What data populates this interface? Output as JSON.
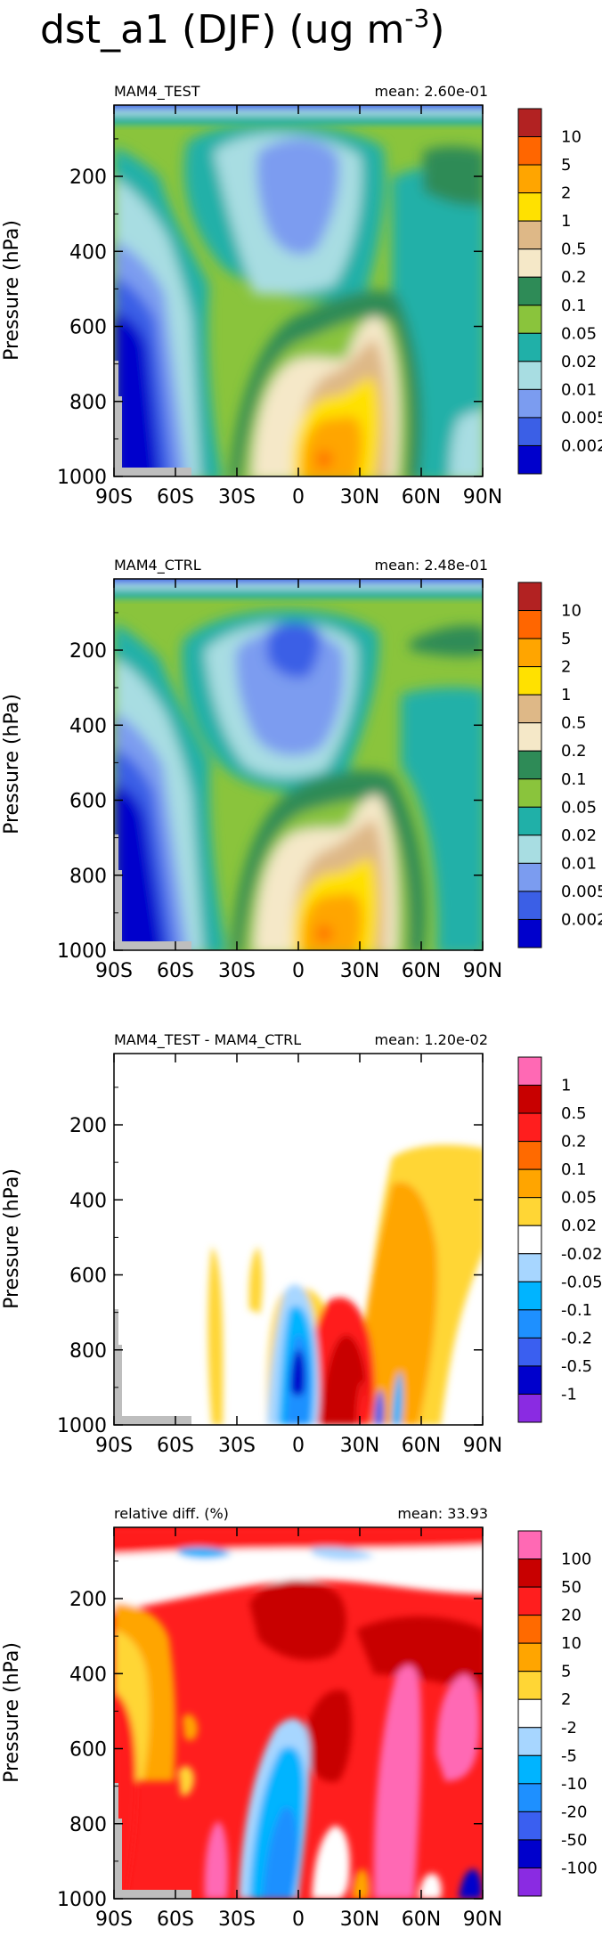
{
  "figure": {
    "title": "dst_a1 (DJF) (ug m",
    "title_sup": "-3",
    "title_end": ")"
  },
  "chart_data": [
    {
      "type": "heatmap",
      "panel_title": "MAM4_TEST",
      "mean_label": "mean: 2.60e-01",
      "ylabel": "Pressure (hPa)",
      "xlabel": "",
      "x_ticks": [
        "90S",
        "60S",
        "30S",
        "0",
        "30N",
        "60N",
        "90N"
      ],
      "y_ticks": [
        "200",
        "400",
        "600",
        "800",
        "1000"
      ],
      "xlim": [
        -90,
        90
      ],
      "ylim": [
        1000,
        10
      ],
      "levels": [
        "0.002",
        "0.005",
        "0.01",
        "0.02",
        "0.05",
        "0.1",
        "0.2",
        "0.5",
        "1",
        "2",
        "5",
        "10"
      ],
      "colors": [
        "#0000cc",
        "#3b5fe6",
        "#7b9cf0",
        "#a8dde2",
        "#20b0a8",
        "#8ac43c",
        "#2e8b57",
        "#f5e8c8",
        "#deb887",
        "#ffe100",
        "#ffa500",
        "#ff6600",
        "#b22222"
      ]
    },
    {
      "type": "heatmap",
      "panel_title": "MAM4_CTRL",
      "mean_label": "mean: 2.48e-01",
      "ylabel": "Pressure (hPa)",
      "xlabel": "",
      "x_ticks": [
        "90S",
        "60S",
        "30S",
        "0",
        "30N",
        "60N",
        "90N"
      ],
      "y_ticks": [
        "200",
        "400",
        "600",
        "800",
        "1000"
      ],
      "xlim": [
        -90,
        90
      ],
      "ylim": [
        1000,
        10
      ],
      "levels": [
        "0.002",
        "0.005",
        "0.01",
        "0.02",
        "0.05",
        "0.1",
        "0.2",
        "0.5",
        "1",
        "2",
        "5",
        "10"
      ],
      "colors": [
        "#0000cc",
        "#3b5fe6",
        "#7b9cf0",
        "#a8dde2",
        "#20b0a8",
        "#8ac43c",
        "#2e8b57",
        "#f5e8c8",
        "#deb887",
        "#ffe100",
        "#ffa500",
        "#ff6600",
        "#b22222"
      ]
    },
    {
      "type": "heatmap",
      "panel_title": "MAM4_TEST - MAM4_CTRL",
      "mean_label": "mean: 1.20e-02",
      "ylabel": "Pressure (hPa)",
      "xlabel": "",
      "x_ticks": [
        "90S",
        "60S",
        "30S",
        "0",
        "30N",
        "60N",
        "90N"
      ],
      "y_ticks": [
        "200",
        "400",
        "600",
        "800",
        "1000"
      ],
      "xlim": [
        -90,
        90
      ],
      "ylim": [
        1000,
        10
      ],
      "levels": [
        "1",
        "0.5",
        "0.2",
        "0.1",
        "0.05",
        "0.02",
        "-0.02",
        "-0.05",
        "-0.1",
        "-0.2",
        "-0.5",
        "-1"
      ],
      "colors": [
        "#ff69b4",
        "#c80000",
        "#ff1e1e",
        "#ff6a00",
        "#ffa500",
        "#ffd635",
        "#ffffff",
        "#a7d6ff",
        "#00b4ff",
        "#1e90ff",
        "#3a5ff0",
        "#0000cc",
        "#8a2be2"
      ]
    },
    {
      "type": "heatmap",
      "panel_title": "relative diff. (%)",
      "mean_label": "mean: 33.93",
      "ylabel": "Pressure (hPa)",
      "xlabel": "",
      "x_ticks": [
        "90S",
        "60S",
        "30S",
        "0",
        "30N",
        "60N",
        "90N"
      ],
      "y_ticks": [
        "200",
        "400",
        "600",
        "800",
        "1000"
      ],
      "xlim": [
        -90,
        90
      ],
      "ylim": [
        1000,
        10
      ],
      "levels": [
        "100",
        "50",
        "20",
        "10",
        "5",
        "2",
        "-2",
        "-5",
        "-10",
        "-20",
        "-50",
        "-100"
      ],
      "colors": [
        "#ff69b4",
        "#c80000",
        "#ff1e1e",
        "#ff6a00",
        "#ffa500",
        "#ffd635",
        "#ffffff",
        "#a7d6ff",
        "#00b4ff",
        "#1e90ff",
        "#3a5ff0",
        "#0000cc",
        "#8a2be2"
      ]
    }
  ]
}
